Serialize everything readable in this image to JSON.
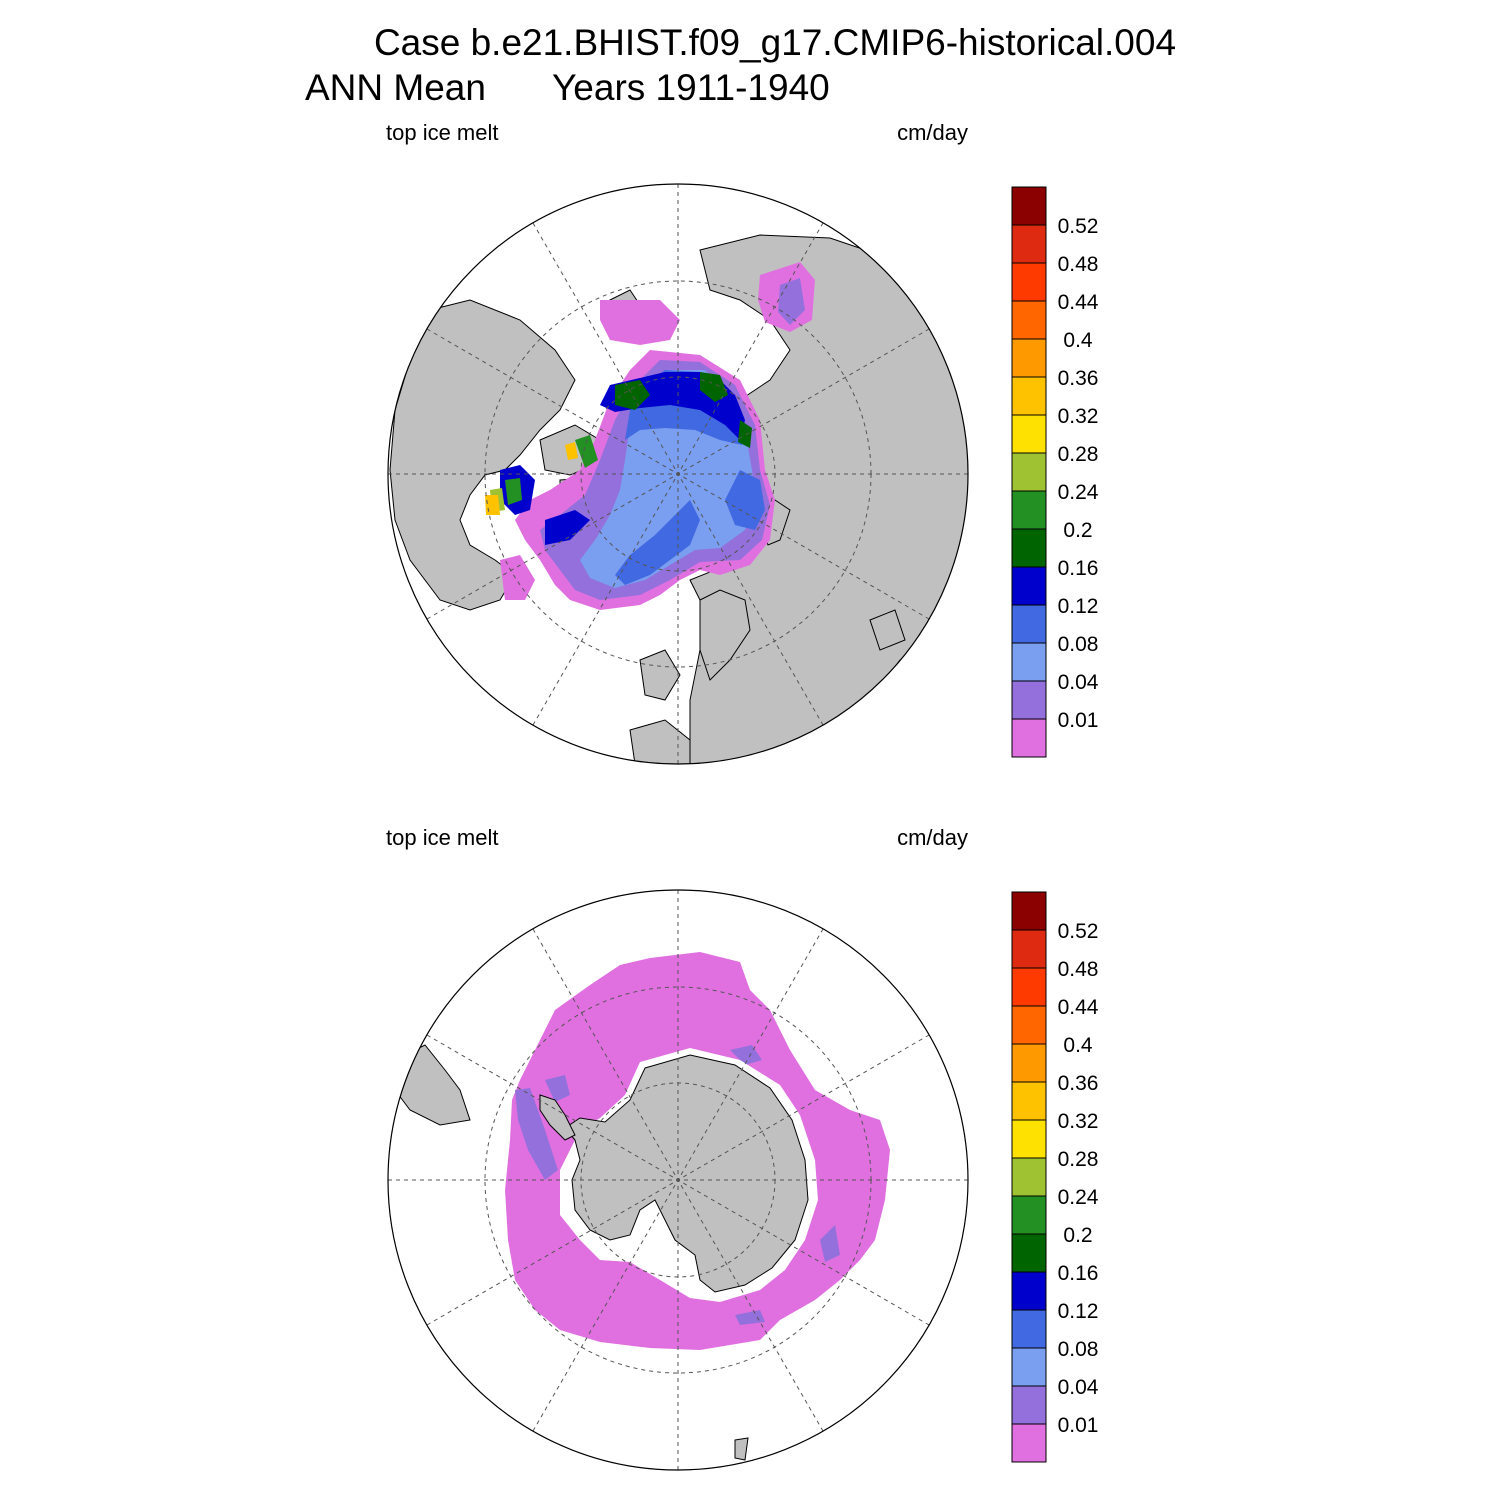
{
  "title": {
    "line1": "Case b.e21.BHIST.f09_g17.CMIP6-historical.004",
    "line2_left": "ANN Mean",
    "line2_right": "Years 1911-1940"
  },
  "panels": [
    {
      "hemisphere": "north",
      "variable_label": "top ice melt",
      "units_label": "cm/day"
    },
    {
      "hemisphere": "south",
      "variable_label": "top ice melt",
      "units_label": "cm/day"
    }
  ],
  "colorbar": {
    "labels": [
      "0.52",
      "0.48",
      "0.44",
      "0.4",
      "0.36",
      "0.32",
      "0.28",
      "0.24",
      "0.2",
      "0.16",
      "0.12",
      "0.08",
      "0.04",
      "0.01"
    ],
    "colors": [
      "#8b0000",
      "#de2a10",
      "#ff3a00",
      "#ff6600",
      "#ff9900",
      "#ffc200",
      "#ffe100",
      "#9fc232",
      "#229022",
      "#006400",
      "#0000cd",
      "#4169e1",
      "#7a9ef0",
      "#9370db",
      "#e070e0"
    ]
  },
  "colors": {
    "land": "#c0c0c0",
    "ocean_no_data": "#ffffff",
    "grid": "#555555"
  }
}
